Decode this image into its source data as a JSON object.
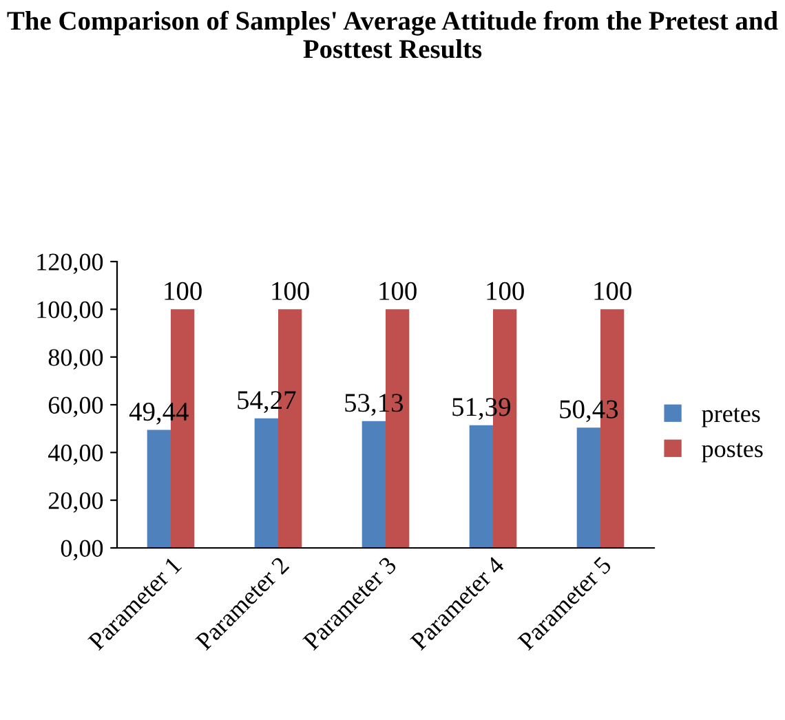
{
  "chart_data": {
    "type": "bar",
    "title": "The Comparison of Samples' Average Attitude from the Pretest and Posttest Results",
    "categories": [
      "Parameter 1",
      "Parameter 2",
      "Parameter 3",
      "Parameter 4",
      "Parameter 5"
    ],
    "series": [
      {
        "name": "pretes",
        "color": "#4f81bd",
        "values": [
          49.44,
          54.27,
          53.13,
          51.39,
          50.43
        ],
        "value_labels": [
          "49,44",
          "54,27",
          "53,13",
          "51,39",
          "50,43"
        ]
      },
      {
        "name": "postes",
        "color": "#c0504d",
        "values": [
          100,
          100,
          100,
          100,
          100
        ],
        "value_labels": [
          "100",
          "100",
          "100",
          "100",
          "100"
        ]
      }
    ],
    "ylim": [
      0,
      120
    ],
    "yticks": [
      {
        "value": 0,
        "label": "0,00"
      },
      {
        "value": 20,
        "label": "20,00"
      },
      {
        "value": 40,
        "label": "40,00"
      },
      {
        "value": 60,
        "label": "60,00"
      },
      {
        "value": 80,
        "label": "80,00"
      },
      {
        "value": 100,
        "label": "100,00"
      },
      {
        "value": 120,
        "label": "120,00"
      }
    ],
    "grid": false,
    "legend": "right"
  }
}
